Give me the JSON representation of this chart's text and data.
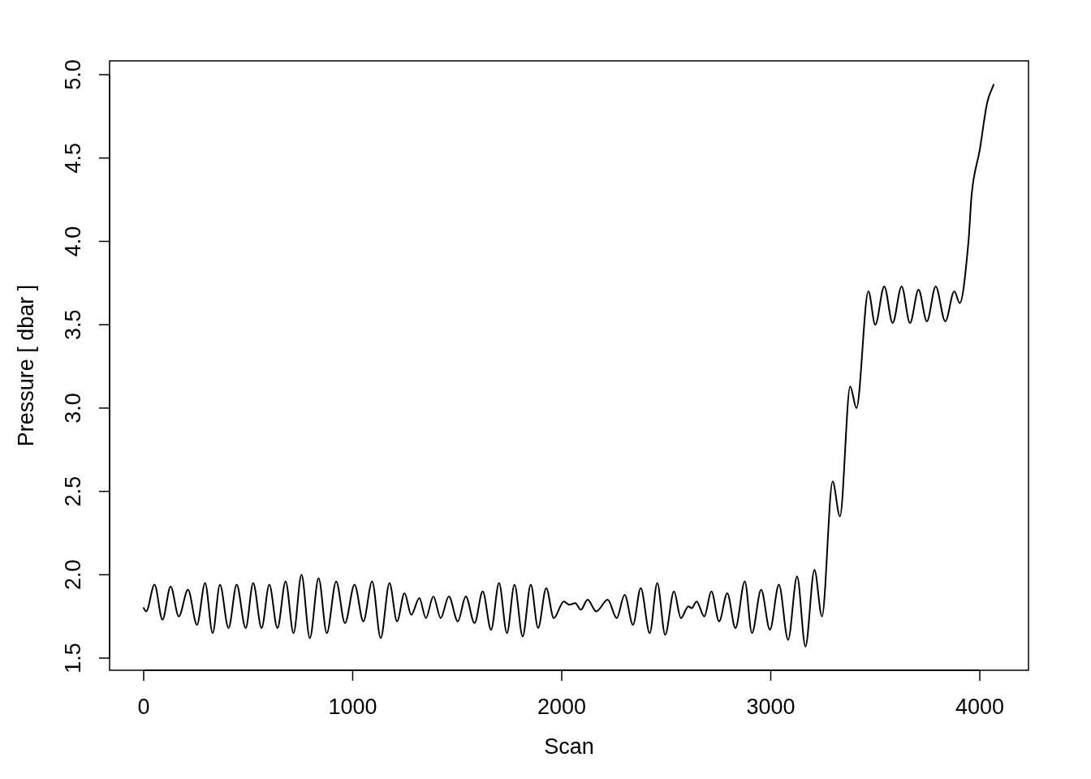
{
  "chart_data": {
    "type": "line",
    "xlabel": "Scan",
    "ylabel": "Pressure [ dbar ]",
    "xlim": [
      -163,
      4233
    ],
    "ylim": [
      1.427,
      5.083
    ],
    "xticks": [
      0,
      1000,
      2000,
      3000,
      4000
    ],
    "yticks": [
      1.5,
      {
        "value": 2,
        "label": "2.0"
      },
      2.5,
      {
        "value": 3,
        "label": "3.0"
      },
      3.5,
      {
        "value": 4,
        "label": "4.0"
      },
      4.5,
      {
        "value": 5,
        "label": "5.0"
      }
    ],
    "grid": false,
    "legend": false,
    "marker": "none",
    "line_style": "solid",
    "series": [
      {
        "color": "#000000",
        "x": [
          0,
          12,
          52,
          90,
          129,
          168,
          212,
          255,
          294,
          330,
          365,
          406,
          445,
          488,
          524,
          564,
          601,
          640,
          679,
          717,
          755,
          795,
          837,
          876,
          921,
          963,
          1009,
          1051,
          1093,
          1134,
          1176,
          1212,
          1248,
          1280,
          1319,
          1350,
          1386,
          1421,
          1460,
          1503,
          1541,
          1583,
          1622,
          1662,
          1700,
          1738,
          1774,
          1813,
          1852,
          1887,
          1926,
          1962,
          2010,
          2036,
          2065,
          2091,
          2124,
          2165,
          2220,
          2263,
          2301,
          2341,
          2378,
          2421,
          2457,
          2495,
          2537,
          2570,
          2606,
          2622,
          2645,
          2682,
          2716,
          2753,
          2792,
          2831,
          2876,
          2910,
          2954,
          2996,
          3039,
          3083,
          3126,
          3166,
          3209,
          3245,
          3296,
          3331,
          3380,
          3410,
          3467,
          3500,
          3543,
          3583,
          3626,
          3666,
          3707,
          3747,
          3789,
          3835,
          3878,
          3904,
          3946,
          3961,
          4000,
          4035,
          4066
        ],
        "values": [
          1.8,
          1.78,
          1.94,
          1.73,
          1.93,
          1.75,
          1.91,
          1.7,
          1.95,
          1.65,
          1.94,
          1.68,
          1.94,
          1.68,
          1.95,
          1.68,
          1.94,
          1.68,
          1.96,
          1.65,
          2.0,
          1.62,
          1.98,
          1.65,
          1.96,
          1.71,
          1.94,
          1.72,
          1.96,
          1.62,
          1.95,
          1.72,
          1.89,
          1.76,
          1.86,
          1.74,
          1.87,
          1.74,
          1.87,
          1.72,
          1.87,
          1.71,
          1.9,
          1.67,
          1.95,
          1.65,
          1.94,
          1.63,
          1.94,
          1.68,
          1.92,
          1.74,
          1.84,
          1.82,
          1.83,
          1.79,
          1.85,
          1.78,
          1.85,
          1.74,
          1.88,
          1.7,
          1.92,
          1.65,
          1.95,
          1.64,
          1.9,
          1.74,
          1.81,
          1.8,
          1.84,
          1.75,
          1.9,
          1.72,
          1.89,
          1.68,
          1.96,
          1.65,
          1.91,
          1.67,
          1.94,
          1.61,
          1.99,
          1.57,
          2.03,
          1.75,
          2.56,
          2.35,
          3.13,
          3.0,
          3.7,
          3.5,
          3.73,
          3.51,
          3.73,
          3.51,
          3.71,
          3.52,
          3.73,
          3.52,
          3.7,
          3.63,
          4.0,
          4.28,
          4.55,
          4.83,
          4.94
        ]
      }
    ]
  }
}
